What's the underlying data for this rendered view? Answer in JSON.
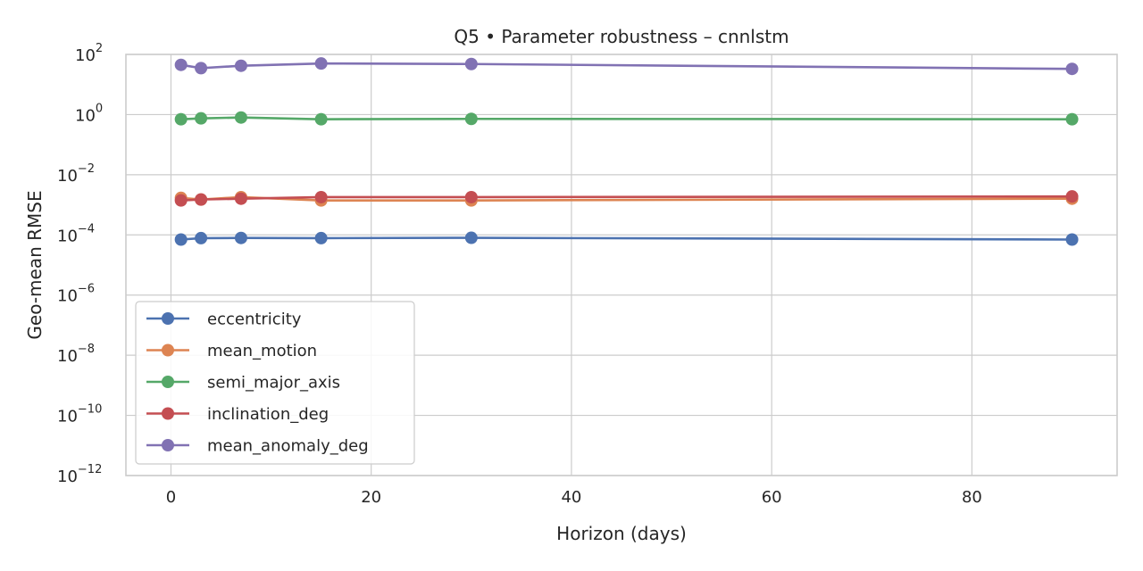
{
  "chart_data": {
    "type": "line",
    "title": "Q5 • Parameter robustness – cnnlstm",
    "xlabel": "Horizon (days)",
    "ylabel": "Geo-mean RMSE",
    "xlim": [
      -4.5,
      94.5
    ],
    "ylim": [
      1e-12,
      100
    ],
    "yscale": "log",
    "grid": true,
    "legend_position": "lower-left",
    "x_ticks": [
      0,
      20,
      40,
      60,
      80
    ],
    "y_tick_exponents": [
      2,
      0,
      -2,
      -4,
      -6,
      -8,
      -10,
      -12
    ],
    "x": [
      1,
      3,
      7,
      15,
      30,
      90
    ],
    "series": [
      {
        "name": "eccentricity",
        "color": "#4c72b0",
        "values": [
          7e-05,
          7.8e-05,
          7.9e-05,
          7.8e-05,
          8e-05,
          7e-05
        ]
      },
      {
        "name": "mean_motion",
        "color": "#dd8452",
        "values": [
          0.0017,
          0.0015,
          0.0018,
          0.0014,
          0.0014,
          0.0016
        ]
      },
      {
        "name": "semi_major_axis",
        "color": "#55a868",
        "values": [
          0.7,
          0.75,
          0.8,
          0.7,
          0.72,
          0.7
        ]
      },
      {
        "name": "inclination_deg",
        "color": "#c44e52",
        "values": [
          0.0014,
          0.0015,
          0.0016,
          0.0018,
          0.0018,
          0.0019
        ]
      },
      {
        "name": "mean_anomaly_deg",
        "color": "#8172b3",
        "values": [
          45,
          35,
          42,
          50,
          48,
          33
        ]
      }
    ]
  }
}
